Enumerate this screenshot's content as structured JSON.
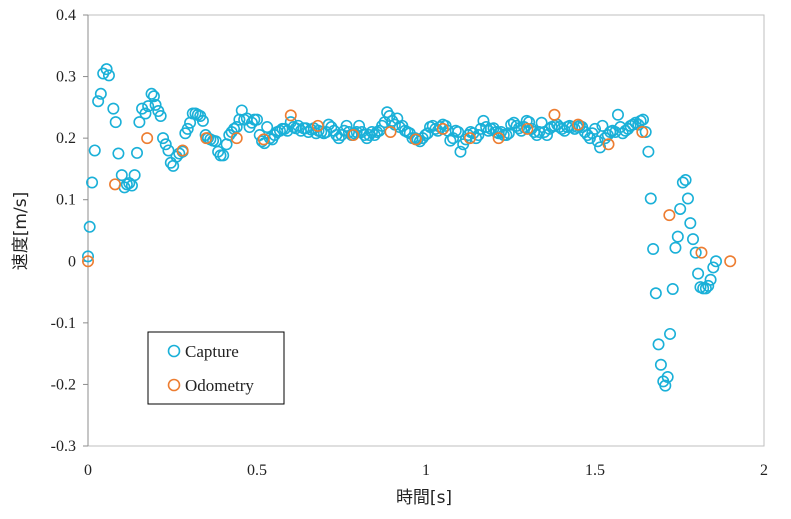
{
  "chart_data": {
    "type": "scatter",
    "xlabel": "時間[s]",
    "ylabel": "速度[m/s]",
    "xlim": [
      0,
      2
    ],
    "ylim": [
      -0.3,
      0.4
    ],
    "x_ticks": [
      "0",
      "0.5",
      "1",
      "1.5",
      "2"
    ],
    "y_ticks": [
      "-0.3",
      "-0.2",
      "-0.1",
      "0",
      "0.1",
      "0.2",
      "0.3",
      "0.4"
    ],
    "grid": false,
    "legend_position": "bottom-left",
    "series": [
      {
        "name": "Capture",
        "color": "#1ab0d8",
        "marker": "open-circle",
        "points": [
          [
            0.0,
            0.008
          ],
          [
            0.005,
            0.056
          ],
          [
            0.012,
            0.128
          ],
          [
            0.02,
            0.18
          ],
          [
            0.03,
            0.26
          ],
          [
            0.038,
            0.272
          ],
          [
            0.045,
            0.305
          ],
          [
            0.055,
            0.312
          ],
          [
            0.062,
            0.302
          ],
          [
            0.075,
            0.248
          ],
          [
            0.082,
            0.226
          ],
          [
            0.09,
            0.175
          ],
          [
            0.1,
            0.14
          ],
          [
            0.108,
            0.12
          ],
          [
            0.115,
            0.125
          ],
          [
            0.122,
            0.127
          ],
          [
            0.13,
            0.123
          ],
          [
            0.138,
            0.14
          ],
          [
            0.145,
            0.176
          ],
          [
            0.152,
            0.226
          ],
          [
            0.16,
            0.248
          ],
          [
            0.17,
            0.24
          ],
          [
            0.178,
            0.252
          ],
          [
            0.188,
            0.272
          ],
          [
            0.195,
            0.268
          ],
          [
            0.2,
            0.254
          ],
          [
            0.208,
            0.244
          ],
          [
            0.215,
            0.236
          ],
          [
            0.222,
            0.2
          ],
          [
            0.23,
            0.19
          ],
          [
            0.238,
            0.18
          ],
          [
            0.245,
            0.16
          ],
          [
            0.252,
            0.155
          ],
          [
            0.262,
            0.17
          ],
          [
            0.27,
            0.175
          ],
          [
            0.28,
            0.178
          ],
          [
            0.288,
            0.208
          ],
          [
            0.295,
            0.215
          ],
          [
            0.302,
            0.225
          ],
          [
            0.31,
            0.24
          ],
          [
            0.318,
            0.24
          ],
          [
            0.325,
            0.238
          ],
          [
            0.332,
            0.236
          ],
          [
            0.34,
            0.228
          ],
          [
            0.348,
            0.205
          ],
          [
            0.355,
            0.2
          ],
          [
            0.362,
            0.198
          ],
          [
            0.37,
            0.196
          ],
          [
            0.378,
            0.195
          ],
          [
            0.385,
            0.178
          ],
          [
            0.392,
            0.172
          ],
          [
            0.4,
            0.172
          ],
          [
            0.41,
            0.19
          ],
          [
            0.418,
            0.205
          ],
          [
            0.425,
            0.21
          ],
          [
            0.432,
            0.215
          ],
          [
            0.44,
            0.218
          ],
          [
            0.448,
            0.23
          ],
          [
            0.455,
            0.245
          ],
          [
            0.462,
            0.23
          ],
          [
            0.47,
            0.232
          ],
          [
            0.478,
            0.218
          ],
          [
            0.485,
            0.225
          ],
          [
            0.492,
            0.23
          ],
          [
            0.5,
            0.23
          ],
          [
            0.508,
            0.205
          ],
          [
            0.515,
            0.195
          ],
          [
            0.522,
            0.192
          ],
          [
            0.53,
            0.218
          ],
          [
            0.538,
            0.2
          ],
          [
            0.545,
            0.198
          ],
          [
            0.552,
            0.205
          ],
          [
            0.56,
            0.21
          ],
          [
            0.568,
            0.212
          ],
          [
            0.575,
            0.215
          ],
          [
            0.582,
            0.215
          ],
          [
            0.59,
            0.212
          ],
          [
            0.6,
            0.226
          ],
          [
            0.608,
            0.218
          ],
          [
            0.615,
            0.216
          ],
          [
            0.622,
            0.22
          ],
          [
            0.63,
            0.212
          ],
          [
            0.638,
            0.216
          ],
          [
            0.645,
            0.216
          ],
          [
            0.652,
            0.21
          ],
          [
            0.66,
            0.214
          ],
          [
            0.668,
            0.216
          ],
          [
            0.675,
            0.208
          ],
          [
            0.682,
            0.212
          ],
          [
            0.69,
            0.21
          ],
          [
            0.698,
            0.208
          ],
          [
            0.705,
            0.21
          ],
          [
            0.712,
            0.222
          ],
          [
            0.72,
            0.218
          ],
          [
            0.728,
            0.212
          ],
          [
            0.735,
            0.205
          ],
          [
            0.742,
            0.2
          ],
          [
            0.75,
            0.205
          ],
          [
            0.758,
            0.212
          ],
          [
            0.765,
            0.22
          ],
          [
            0.772,
            0.21
          ],
          [
            0.78,
            0.205
          ],
          [
            0.788,
            0.208
          ],
          [
            0.795,
            0.21
          ],
          [
            0.802,
            0.22
          ],
          [
            0.81,
            0.21
          ],
          [
            0.818,
            0.205
          ],
          [
            0.825,
            0.2
          ],
          [
            0.832,
            0.205
          ],
          [
            0.84,
            0.21
          ],
          [
            0.848,
            0.205
          ],
          [
            0.855,
            0.21
          ],
          [
            0.862,
            0.212
          ],
          [
            0.87,
            0.22
          ],
          [
            0.878,
            0.226
          ],
          [
            0.885,
            0.242
          ],
          [
            0.892,
            0.236
          ],
          [
            0.9,
            0.228
          ],
          [
            0.908,
            0.222
          ],
          [
            0.915,
            0.232
          ],
          [
            0.922,
            0.218
          ],
          [
            0.93,
            0.22
          ],
          [
            0.938,
            0.212
          ],
          [
            0.945,
            0.21
          ],
          [
            0.952,
            0.208
          ],
          [
            0.96,
            0.2
          ],
          [
            0.968,
            0.2
          ],
          [
            0.975,
            0.198
          ],
          [
            0.982,
            0.195
          ],
          [
            0.99,
            0.2
          ],
          [
            0.998,
            0.205
          ],
          [
            1.005,
            0.208
          ],
          [
            1.012,
            0.218
          ],
          [
            1.02,
            0.22
          ],
          [
            1.028,
            0.215
          ],
          [
            1.035,
            0.212
          ],
          [
            1.042,
            0.218
          ],
          [
            1.05,
            0.222
          ],
          [
            1.058,
            0.22
          ],
          [
            1.065,
            0.212
          ],
          [
            1.072,
            0.196
          ],
          [
            1.08,
            0.2
          ],
          [
            1.088,
            0.212
          ],
          [
            1.095,
            0.21
          ],
          [
            1.102,
            0.178
          ],
          [
            1.11,
            0.19
          ],
          [
            1.118,
            0.198
          ],
          [
            1.125,
            0.205
          ],
          [
            1.132,
            0.21
          ],
          [
            1.14,
            0.208
          ],
          [
            1.148,
            0.2
          ],
          [
            1.155,
            0.205
          ],
          [
            1.162,
            0.215
          ],
          [
            1.17,
            0.228
          ],
          [
            1.178,
            0.218
          ],
          [
            1.185,
            0.212
          ],
          [
            1.192,
            0.215
          ],
          [
            1.2,
            0.216
          ],
          [
            1.208,
            0.21
          ],
          [
            1.215,
            0.208
          ],
          [
            1.222,
            0.21
          ],
          [
            1.23,
            0.205
          ],
          [
            1.238,
            0.205
          ],
          [
            1.245,
            0.208
          ],
          [
            1.252,
            0.222
          ],
          [
            1.26,
            0.225
          ],
          [
            1.268,
            0.22
          ],
          [
            1.275,
            0.216
          ],
          [
            1.282,
            0.212
          ],
          [
            1.29,
            0.218
          ],
          [
            1.298,
            0.228
          ],
          [
            1.305,
            0.226
          ],
          [
            1.312,
            0.215
          ],
          [
            1.32,
            0.21
          ],
          [
            1.328,
            0.205
          ],
          [
            1.335,
            0.21
          ],
          [
            1.342,
            0.225
          ],
          [
            1.35,
            0.21
          ],
          [
            1.358,
            0.205
          ],
          [
            1.365,
            0.215
          ],
          [
            1.372,
            0.218
          ],
          [
            1.38,
            0.22
          ],
          [
            1.388,
            0.222
          ],
          [
            1.395,
            0.218
          ],
          [
            1.402,
            0.215
          ],
          [
            1.41,
            0.212
          ],
          [
            1.418,
            0.218
          ],
          [
            1.425,
            0.22
          ],
          [
            1.432,
            0.218
          ],
          [
            1.44,
            0.215
          ],
          [
            1.448,
            0.218
          ],
          [
            1.455,
            0.22
          ],
          [
            1.462,
            0.218
          ],
          [
            1.47,
            0.21
          ],
          [
            1.478,
            0.205
          ],
          [
            1.485,
            0.2
          ],
          [
            1.492,
            0.208
          ],
          [
            1.5,
            0.215
          ],
          [
            1.508,
            0.195
          ],
          [
            1.515,
            0.185
          ],
          [
            1.522,
            0.22
          ],
          [
            1.53,
            0.2
          ],
          [
            1.538,
            0.205
          ],
          [
            1.545,
            0.21
          ],
          [
            1.552,
            0.212
          ],
          [
            1.56,
            0.21
          ],
          [
            1.568,
            0.238
          ],
          [
            1.575,
            0.218
          ],
          [
            1.582,
            0.208
          ],
          [
            1.59,
            0.212
          ],
          [
            1.598,
            0.215
          ],
          [
            1.605,
            0.22
          ],
          [
            1.612,
            0.222
          ],
          [
            1.62,
            0.225
          ],
          [
            1.628,
            0.222
          ],
          [
            1.635,
            0.228
          ],
          [
            1.642,
            0.23
          ],
          [
            1.65,
            0.21
          ],
          [
            1.658,
            0.178
          ],
          [
            1.665,
            0.102
          ],
          [
            1.672,
            0.02
          ],
          [
            1.68,
            -0.052
          ],
          [
            1.688,
            -0.135
          ],
          [
            1.695,
            -0.168
          ],
          [
            1.702,
            -0.195
          ],
          [
            1.708,
            -0.202
          ],
          [
            1.715,
            -0.188
          ],
          [
            1.722,
            -0.118
          ],
          [
            1.73,
            -0.045
          ],
          [
            1.738,
            0.022
          ],
          [
            1.745,
            0.04
          ],
          [
            1.752,
            0.085
          ],
          [
            1.76,
            0.128
          ],
          [
            1.768,
            0.132
          ],
          [
            1.775,
            0.102
          ],
          [
            1.782,
            0.062
          ],
          [
            1.79,
            0.036
          ],
          [
            1.798,
            0.014
          ],
          [
            1.805,
            -0.02
          ],
          [
            1.812,
            -0.042
          ],
          [
            1.82,
            -0.044
          ],
          [
            1.828,
            -0.044
          ],
          [
            1.835,
            -0.04
          ],
          [
            1.842,
            -0.03
          ],
          [
            1.85,
            -0.01
          ],
          [
            1.858,
            0.0
          ]
        ]
      },
      {
        "name": "Odometry",
        "color": "#ed7d31",
        "marker": "open-circle",
        "points": [
          [
            0.0,
            0.0
          ],
          [
            0.08,
            0.125
          ],
          [
            0.175,
            0.2
          ],
          [
            0.28,
            0.18
          ],
          [
            0.35,
            0.2
          ],
          [
            0.44,
            0.2
          ],
          [
            0.52,
            0.198
          ],
          [
            0.6,
            0.237
          ],
          [
            0.68,
            0.22
          ],
          [
            0.785,
            0.205
          ],
          [
            0.895,
            0.21
          ],
          [
            0.97,
            0.198
          ],
          [
            1.05,
            0.215
          ],
          [
            1.13,
            0.2
          ],
          [
            1.215,
            0.2
          ],
          [
            1.3,
            0.215
          ],
          [
            1.38,
            0.238
          ],
          [
            1.45,
            0.222
          ],
          [
            1.54,
            0.19
          ],
          [
            1.64,
            0.21
          ],
          [
            1.72,
            0.075
          ],
          [
            1.815,
            0.014
          ],
          [
            1.9,
            0.0
          ]
        ]
      }
    ]
  }
}
